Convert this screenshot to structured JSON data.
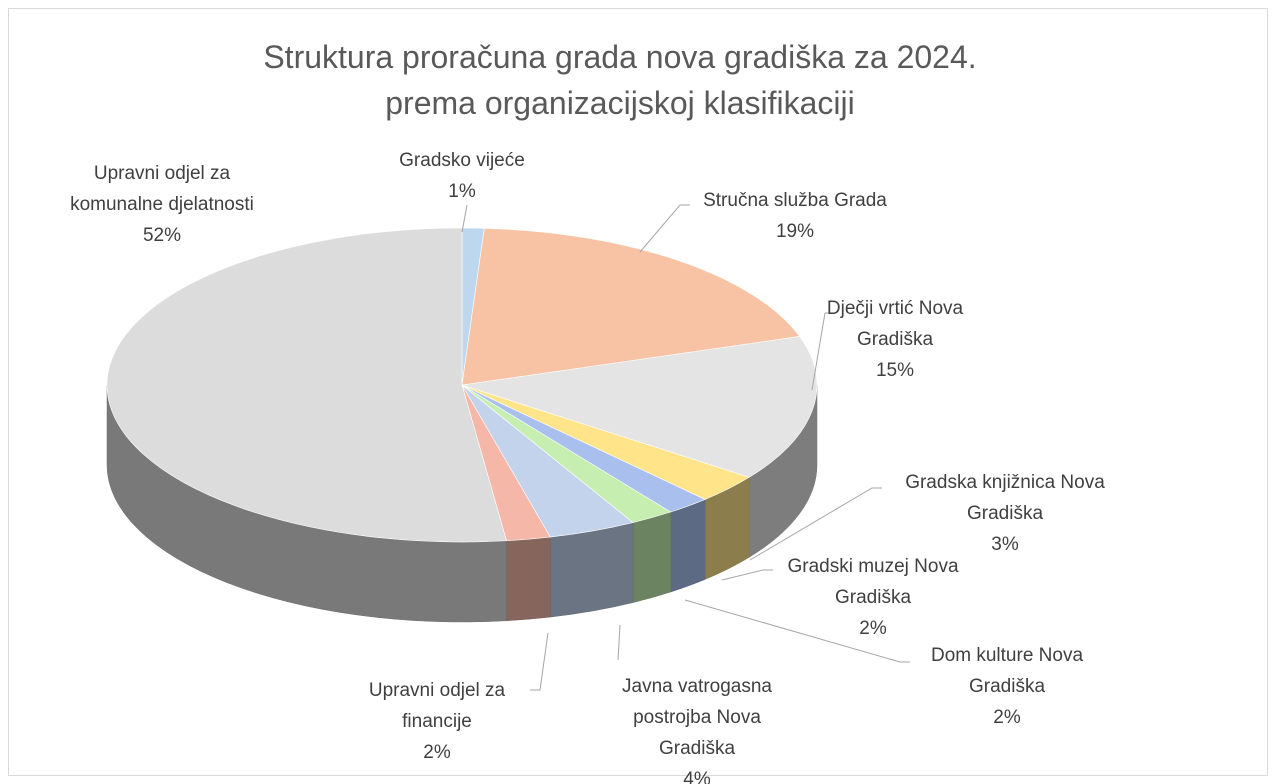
{
  "chart_data": {
    "type": "pie",
    "title": "Struktura proračuna grada nova gradiška za 2024. prema organizacijskoj klasifikaciji",
    "categories": [
      "Gradsko vijeće",
      "Stručna služba Grada",
      "Dječji vrtić Nova Gradiška",
      "Gradska knjižnica Nova Gradiška",
      "Gradski muzej Nova Gradiška",
      "Dom kulture Nova Gradiška",
      "Javna vatrogasna postrojba Nova Gradiška",
      "Upravni odjel za financije",
      "Upravni odjel za komunalne djelatnosti"
    ],
    "values": [
      1,
      19,
      15,
      3,
      2,
      2,
      4,
      2,
      52
    ],
    "value_labels": [
      "1%",
      "19%",
      "15%",
      "3%",
      "2%",
      "2%",
      "4%",
      "2%",
      "52%"
    ],
    "colors": [
      "#bdd7ee",
      "#f8c3a4",
      "#e4e4e4",
      "#ffe48a",
      "#a9c0ee",
      "#c5eeb0",
      "#c3d3ec",
      "#f4b7a8",
      "#dcdcdc"
    ]
  }
}
